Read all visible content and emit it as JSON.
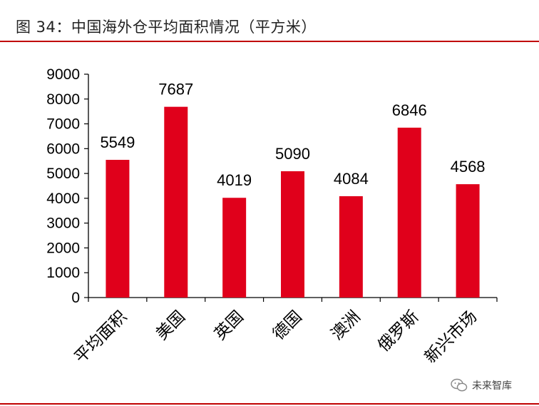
{
  "header": {
    "title": "图 34：中国海外仓平均面积情况（平方米）"
  },
  "watermark": {
    "text": "未来智库",
    "icon": "wechat-icon"
  },
  "colors": {
    "bar": "#e0001b",
    "rule": "#c00000"
  },
  "chart_data": {
    "type": "bar",
    "categories": [
      "平均面积",
      "美国",
      "英国",
      "德国",
      "澳洲",
      "俄罗斯",
      "新兴市场"
    ],
    "values": [
      5549,
      7687,
      4019,
      5090,
      4084,
      6846,
      4568
    ],
    "title": "图 34：中国海外仓平均面积情况（平方米）",
    "xlabel": "",
    "ylabel": "",
    "ylim": [
      0,
      9000
    ],
    "yticks": [
      0,
      1000,
      2000,
      3000,
      4000,
      5000,
      6000,
      7000,
      8000,
      9000
    ],
    "grid": false,
    "legend": "none",
    "data_labels": true
  }
}
